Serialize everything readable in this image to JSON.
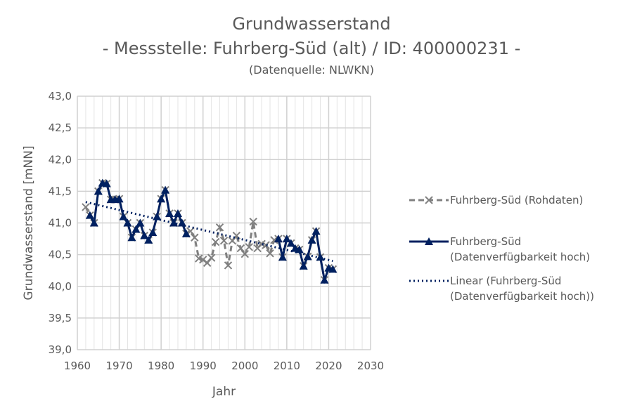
{
  "chart_data": {
    "type": "line",
    "title": "Grundwasserstand",
    "subtitle": "- Messstelle: Fuhrberg-Süd (alt) / ID: 400000231 -",
    "source": "(Datenquelle: NLWKN)",
    "xlabel": "Jahr",
    "ylabel": "Grundwasserstand [mNN]",
    "xlim": [
      1960,
      2030
    ],
    "ylim": [
      39,
      43
    ],
    "xticks": [
      "1960",
      "1970",
      "1980",
      "1990",
      "2000",
      "2010",
      "2020",
      "2030"
    ],
    "yticks": [
      "39,0",
      "39,5",
      "40,0",
      "40,5",
      "41,0",
      "41,5",
      "42,0",
      "42,5",
      "43,0"
    ],
    "grid": true,
    "legend_position": "right",
    "x": [
      1962,
      1963,
      1964,
      1965,
      1966,
      1967,
      1968,
      1969,
      1970,
      1971,
      1972,
      1973,
      1974,
      1975,
      1976,
      1977,
      1978,
      1979,
      1980,
      1981,
      1982,
      1983,
      1984,
      1985,
      1986,
      1987,
      1988,
      1989,
      1990,
      1991,
      1992,
      1993,
      1994,
      1995,
      1996,
      1997,
      1998,
      1999,
      2000,
      2001,
      2002,
      2003,
      2004,
      2005,
      2006,
      2007,
      2008,
      2009,
      2010,
      2011,
      2012,
      2013,
      2014,
      2015,
      2016,
      2017,
      2018,
      2019,
      2020,
      2021
    ],
    "series": [
      {
        "name": "Fuhrberg-Süd (Rohdaten)",
        "color": "#808080",
        "values": [
          41.25,
          41.12,
          41.0,
          41.5,
          41.63,
          41.62,
          41.37,
          41.37,
          41.38,
          41.1,
          41.0,
          40.77,
          40.9,
          41.0,
          40.8,
          40.73,
          40.85,
          41.1,
          41.38,
          41.52,
          41.15,
          41.0,
          41.15,
          41.0,
          40.83,
          40.87,
          40.77,
          40.44,
          40.42,
          40.37,
          40.45,
          40.7,
          40.93,
          40.72,
          40.33,
          40.72,
          40.8,
          40.6,
          40.51,
          40.62,
          41.02,
          40.6,
          40.67,
          40.65,
          40.52,
          40.73,
          40.75,
          40.46,
          40.75,
          40.68,
          40.6,
          40.58,
          40.32,
          40.47,
          40.73,
          40.87,
          40.46,
          40.1,
          40.29,
          40.27
        ]
      },
      {
        "name": "Fuhrberg-Süd\n(Datenverfügbarkeit hoch)",
        "color": "#002060",
        "values": [
          null,
          41.12,
          41.0,
          41.5,
          41.63,
          41.62,
          41.37,
          41.37,
          41.38,
          41.1,
          41.0,
          40.77,
          40.9,
          41.0,
          40.8,
          40.73,
          40.85,
          41.1,
          41.38,
          41.52,
          41.15,
          41.0,
          41.15,
          41.0,
          40.83,
          null,
          null,
          null,
          null,
          null,
          null,
          null,
          null,
          null,
          null,
          null,
          null,
          null,
          null,
          null,
          null,
          null,
          null,
          null,
          null,
          null,
          40.75,
          40.46,
          40.75,
          40.68,
          40.6,
          40.58,
          40.32,
          40.47,
          40.73,
          40.87,
          40.46,
          40.1,
          40.29,
          40.27
        ]
      },
      {
        "name": "Linear (Fuhrberg-Süd\n(Datenverfügbarkeit hoch))",
        "color": "#002060",
        "trend": [
          [
            1962,
            41.33
          ],
          [
            2021,
            40.4
          ]
        ]
      }
    ],
    "legend": [
      "Fuhrberg-Süd (Rohdaten)",
      "Fuhrberg-Süd",
      "(Datenverfügbarkeit hoch)",
      "Linear (Fuhrberg-Süd",
      "(Datenverfügbarkeit hoch))"
    ]
  }
}
